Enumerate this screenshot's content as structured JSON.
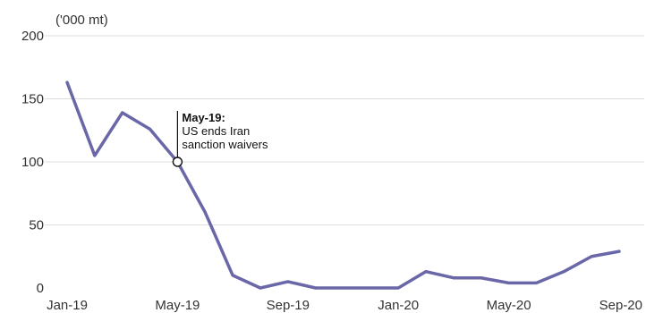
{
  "chart_data": {
    "type": "line",
    "ylabel": "('000 mt)",
    "ylim": [
      0,
      200
    ],
    "yticks": [
      "0",
      "50",
      "100",
      "150",
      "200"
    ],
    "xticks": [
      "Jan-19",
      "May-19",
      "Sep-19",
      "Jan-20",
      "May-20",
      "Sep-20"
    ],
    "grid": true,
    "series": [
      {
        "color": "#6a67a8",
        "x": [
          "Jan-19",
          "Feb-19",
          "Mar-19",
          "Apr-19",
          "May-19",
          "Jun-19",
          "Jul-19",
          "Aug-19",
          "Sep-19",
          "Oct-19",
          "Nov-19",
          "Dec-19",
          "Jan-20",
          "Feb-20",
          "Mar-20",
          "Apr-20",
          "May-20",
          "Jun-20",
          "Jul-20",
          "Aug-20",
          "Sep-20"
        ],
        "values": [
          163,
          105,
          139,
          126,
          100,
          60,
          10,
          0,
          5,
          0,
          0,
          0,
          0,
          13,
          8,
          8,
          4,
          4,
          13,
          25,
          29
        ]
      }
    ],
    "annotation": {
      "x": "May-19",
      "value": 100,
      "head": "May-19:",
      "lines": [
        "US ends Iran",
        "sanction waivers"
      ]
    }
  }
}
